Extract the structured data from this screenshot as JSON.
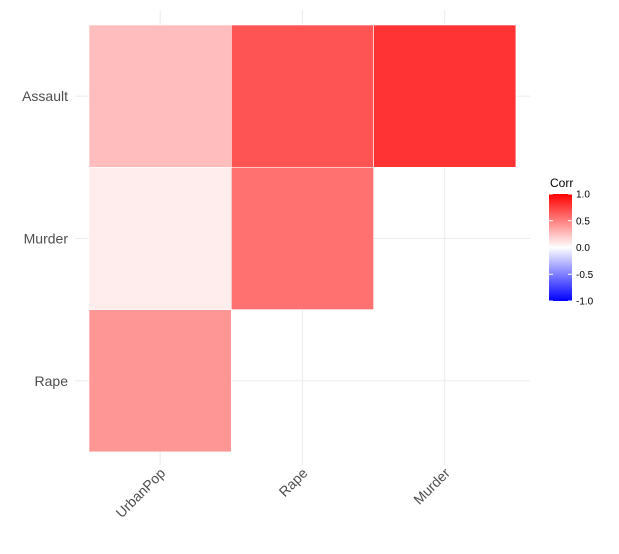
{
  "chart_data": {
    "type": "heatmap",
    "x_categories": [
      "UrbanPop",
      "Rape",
      "Murder"
    ],
    "y_categories": [
      "Assault",
      "Murder",
      "Rape"
    ],
    "cells": [
      {
        "x": "UrbanPop",
        "y": "Assault",
        "value": 0.26
      },
      {
        "x": "Rape",
        "y": "Assault",
        "value": 0.67
      },
      {
        "x": "Murder",
        "y": "Assault",
        "value": 0.8
      },
      {
        "x": "UrbanPop",
        "y": "Murder",
        "value": 0.07
      },
      {
        "x": "Rape",
        "y": "Murder",
        "value": 0.56
      },
      {
        "x": "UrbanPop",
        "y": "Rape",
        "value": 0.41
      }
    ],
    "legend": {
      "title": "Corr",
      "ticks": [
        "1.0",
        "0.5",
        "0.0",
        "-0.5",
        "-1.0"
      ],
      "tick_values": [
        1.0,
        0.5,
        0.0,
        -0.5,
        -1.0
      ],
      "range": [
        -1,
        1
      ],
      "colors": {
        "low": "#0000ff",
        "mid": "#ffffff",
        "high": "#ff0000"
      },
      "placement": "right"
    },
    "grid": true
  }
}
